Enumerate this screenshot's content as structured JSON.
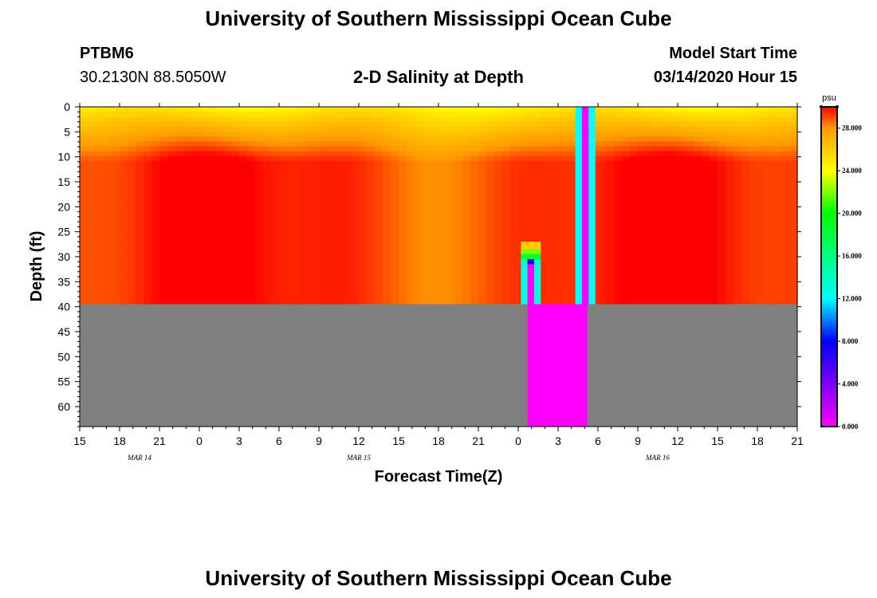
{
  "page": {
    "title_top": "University of Southern Mississippi Ocean Cube",
    "title_bottom": "University of Southern Mississippi Ocean Cube",
    "station_id": "PTBM6",
    "station_coords": "30.2130N 88.5050W",
    "subtitle": "2-D Salinity at Depth",
    "model_start_label": "Model Start Time",
    "model_start_value": "03/14/2020 Hour 15"
  },
  "colors": {
    "missing_fill": "#808080",
    "background": "#ffffff"
  },
  "chart_data": {
    "type": "heatmap",
    "title": "2-D Salinity at Depth",
    "xlabel": "Forecast Time(Z)",
    "ylabel": "Depth (ft)",
    "x_range_hours": [
      0,
      54
    ],
    "x_tick_step_hours": 3,
    "x_tick_labels": [
      "15",
      "18",
      "21",
      "0",
      "3",
      "6",
      "9",
      "12",
      "15",
      "18",
      "21",
      "0",
      "3",
      "6",
      "9",
      "12",
      "15",
      "18",
      "21"
    ],
    "date_labels": [
      {
        "text": "MAR  14",
        "hour": 4.5
      },
      {
        "text": "MAR  15",
        "hour": 21
      },
      {
        "text": "MAR  16",
        "hour": 43.5
      }
    ],
    "y_range_ft": [
      0,
      64
    ],
    "y_ticks": [
      0,
      5,
      10,
      15,
      20,
      25,
      30,
      35,
      40,
      45,
      50,
      55,
      60
    ],
    "water_depth_ft": 39.5,
    "colorbar": {
      "unit": "psu",
      "min": 0,
      "max": 30,
      "tick_labels": [
        "0.000",
        "4.000",
        "8.000",
        "12.000",
        "16.000",
        "20.000",
        "24.000",
        "28.000"
      ],
      "tick_values": [
        0,
        4,
        8,
        12,
        16,
        20,
        24,
        28
      ],
      "stops": [
        {
          "v": 0,
          "c": "#ff00ff"
        },
        {
          "v": 4,
          "c": "#8000ff"
        },
        {
          "v": 8,
          "c": "#0000ff"
        },
        {
          "v": 12,
          "c": "#00ffff"
        },
        {
          "v": 16,
          "c": "#00ff80"
        },
        {
          "v": 20,
          "c": "#00ff00"
        },
        {
          "v": 24,
          "c": "#ffff00"
        },
        {
          "v": 28,
          "c": "#ff9900"
        },
        {
          "v": 30,
          "c": "#ff0000"
        }
      ]
    },
    "surface_salinity_psu": 24.5,
    "anomalies": [
      {
        "type": "column",
        "hour_start": 37.3,
        "hour_end": 37.8,
        "depth_start": 0,
        "depth_end": 39.5,
        "value": 12
      },
      {
        "type": "column",
        "hour_start": 37.8,
        "hour_end": 38.3,
        "depth_start": 0,
        "depth_end": 39.5,
        "value": 0
      },
      {
        "type": "column",
        "hour_start": 38.3,
        "hour_end": 38.8,
        "depth_start": 0,
        "depth_end": 39.5,
        "value": 12
      },
      {
        "type": "column",
        "hour_start": 33.2,
        "hour_end": 33.7,
        "depth_start": 31.5,
        "depth_end": 39.5,
        "value": 13
      },
      {
        "type": "column",
        "hour_start": 33.7,
        "hour_end": 34.2,
        "depth_start": 31.5,
        "depth_end": 39.5,
        "value": 0
      },
      {
        "type": "column",
        "hour_start": 34.2,
        "hour_end": 34.7,
        "depth_start": 31.5,
        "depth_end": 39.5,
        "value": 13
      },
      {
        "type": "column",
        "hour_start": 33.7,
        "hour_end": 38.2,
        "depth_start": 39.5,
        "depth_end": 64,
        "value": 0
      },
      {
        "type": "cell",
        "hour_start": 33.2,
        "hour_end": 34.7,
        "depth_start": 27,
        "depth_end": 28.5,
        "value": 26
      },
      {
        "type": "cell",
        "hour_start": 33.2,
        "hour_end": 34.7,
        "depth_start": 28.5,
        "depth_end": 29.5,
        "value": 22
      },
      {
        "type": "cell",
        "hour_start": 33.2,
        "hour_end": 34.7,
        "depth_start": 29.5,
        "depth_end": 30.5,
        "value": 18
      },
      {
        "type": "cell",
        "hour_start": 33.2,
        "hour_end": 33.7,
        "depth_start": 30.5,
        "depth_end": 31.5,
        "value": 14
      },
      {
        "type": "cell",
        "hour_start": 33.7,
        "hour_end": 34.2,
        "depth_start": 30.5,
        "depth_end": 31.5,
        "value": 8
      },
      {
        "type": "cell",
        "hour_start": 34.2,
        "hour_end": 34.7,
        "depth_start": 30.5,
        "depth_end": 31.5,
        "value": 14
      }
    ]
  }
}
